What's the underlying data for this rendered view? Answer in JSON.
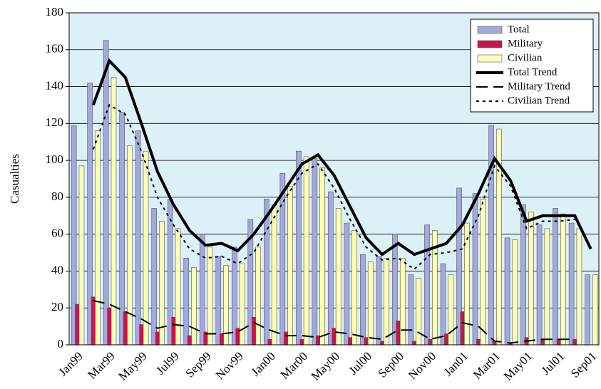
{
  "chart_data": {
    "type": "bar",
    "y_label": "Casualties",
    "categories": [
      "Jan99",
      null,
      "Mar99",
      null,
      "May99",
      null,
      "Jul99",
      null,
      "Sep99",
      null,
      "Nov99",
      null,
      "Jan00",
      null,
      "Mar00",
      null,
      "May00",
      null,
      "Jul00",
      null,
      "Sep00",
      null,
      "Nov00",
      null,
      "Jan01",
      null,
      "Mar01",
      null,
      "May01",
      null,
      "Jul01",
      null,
      "Sep01"
    ],
    "ylim": [
      0,
      180
    ],
    "yticks": [
      0,
      20,
      40,
      60,
      80,
      100,
      120,
      140,
      160,
      180
    ],
    "grid": true,
    "legend": "top-right",
    "background": "#dcf0f8",
    "series": [
      {
        "name": "Total",
        "kind": "bar",
        "color": "#a3a9da",
        "values": [
          119,
          142,
          165,
          126,
          116,
          74,
          79,
          47,
          60,
          48,
          53,
          68,
          79,
          93,
          105,
          101,
          83,
          66,
          49,
          48,
          60,
          38,
          65,
          44,
          85,
          82,
          119,
          58,
          76,
          65,
          74,
          66,
          38
        ]
      },
      {
        "name": "Military",
        "kind": "bar",
        "color": "#c8144a",
        "values": [
          22,
          26,
          20,
          18,
          11,
          7,
          15,
          5,
          7,
          6,
          9,
          15,
          3,
          7,
          3,
          5,
          9,
          4,
          4,
          2,
          13,
          2,
          3,
          6,
          18,
          3,
          2,
          1,
          4,
          3,
          3,
          3,
          0
        ]
      },
      {
        "name": "Civilian",
        "kind": "bar",
        "color": "#ffffb4",
        "values": [
          97,
          116,
          145,
          108,
          105,
          67,
          63,
          42,
          53,
          43,
          44,
          53,
          76,
          86,
          102,
          96,
          74,
          62,
          45,
          47,
          47,
          36,
          62,
          38,
          66,
          79,
          117,
          57,
          72,
          63,
          71,
          63,
          38
        ]
      },
      {
        "name": "Total Trend",
        "kind": "line",
        "color": "#000000",
        "dash": "solid",
        "values": [
          null,
          130,
          154,
          145,
          120,
          94,
          76,
          62,
          54,
          55,
          51,
          60,
          72,
          85,
          98,
          103,
          92,
          75,
          58,
          49,
          55,
          49,
          52,
          55,
          65,
          82,
          101,
          89,
          67,
          70,
          70,
          70,
          52
        ]
      },
      {
        "name": "Military Trend",
        "kind": "line",
        "color": "#000000",
        "dash": "dashed",
        "values": [
          null,
          24,
          22,
          18,
          14,
          9,
          11,
          10,
          6,
          6,
          7,
          12,
          8,
          5,
          5,
          4,
          7,
          6,
          4,
          3,
          8,
          8,
          3,
          5,
          12,
          10,
          2,
          1,
          2,
          3,
          3,
          3,
          null
        ]
      },
      {
        "name": "Civilian Trend",
        "kind": "line",
        "color": "#000000",
        "dash": "dotted",
        "values": [
          null,
          106,
          130,
          125,
          105,
          80,
          65,
          52,
          47,
          48,
          44,
          50,
          65,
          80,
          93,
          98,
          85,
          68,
          53,
          46,
          47,
          41,
          49,
          50,
          52,
          70,
          97,
          86,
          63,
          67,
          67,
          68,
          null
        ]
      }
    ]
  }
}
